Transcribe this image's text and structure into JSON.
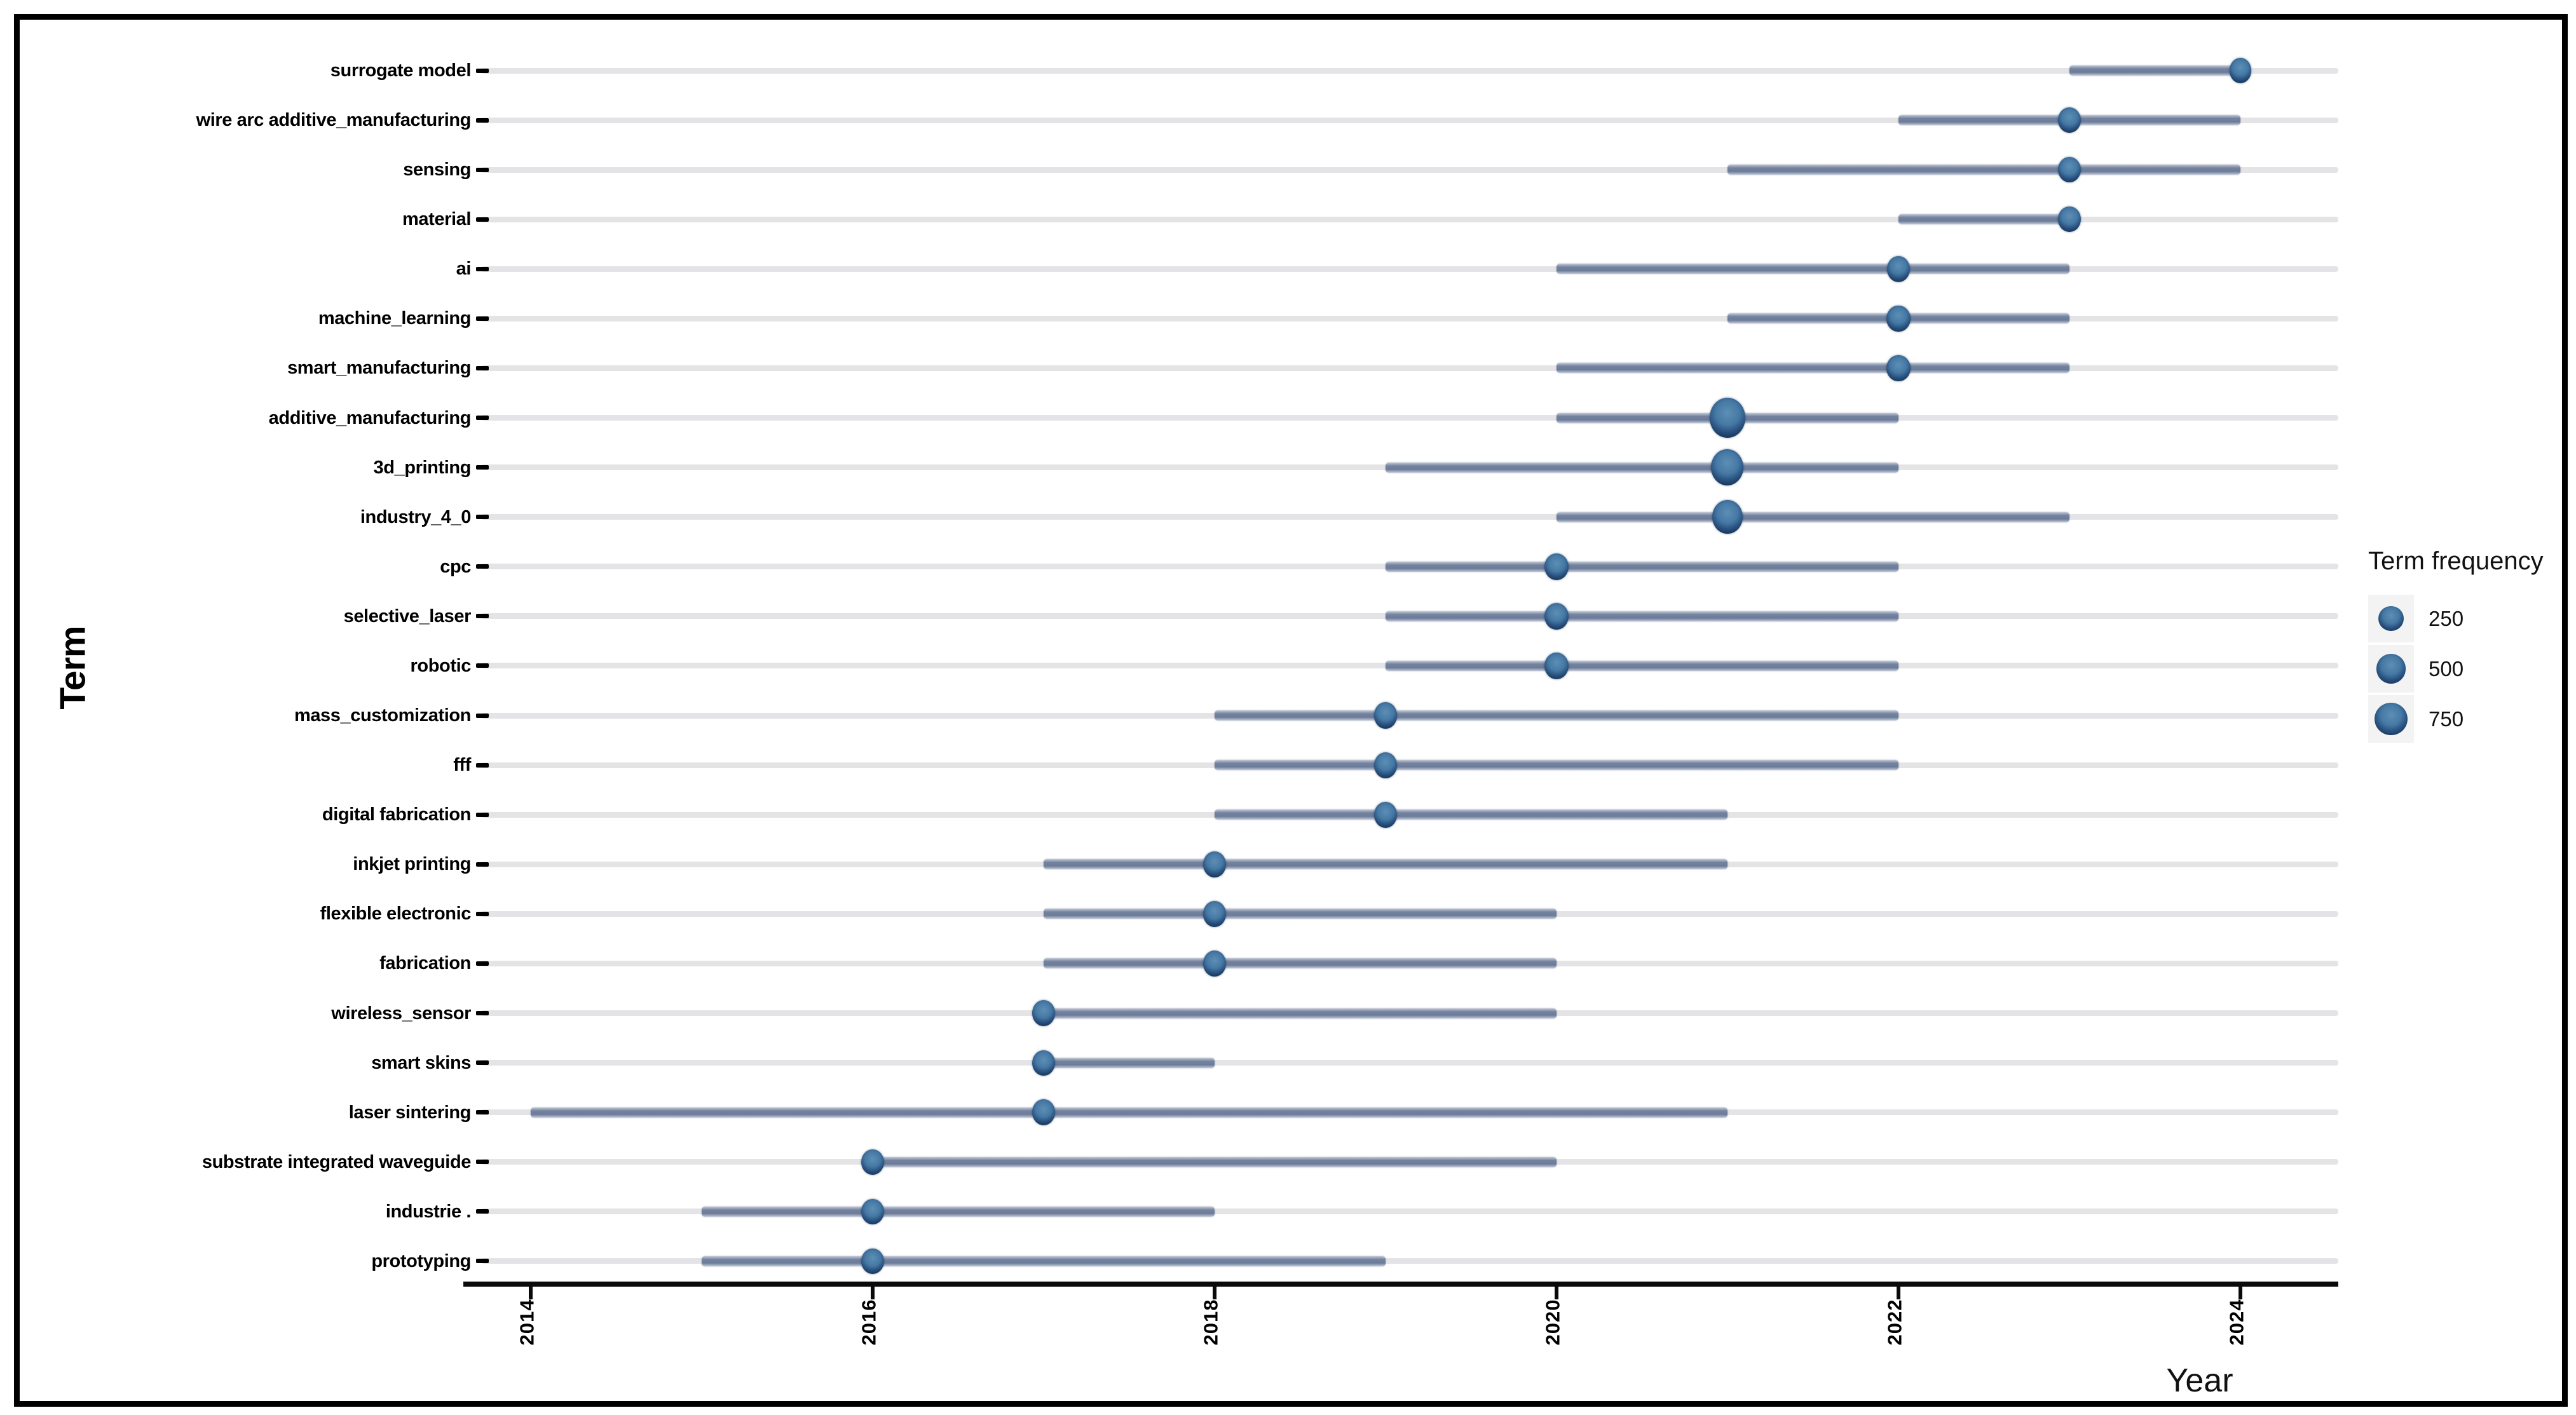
{
  "chart_data": {
    "type": "range-dot",
    "title": "",
    "xlabel": "Year",
    "ylabel": "Term",
    "x_ticks": [
      "2014",
      "2016",
      "2018",
      "2020",
      "2022",
      "2024"
    ],
    "x_range": [
      2013.7,
      2024.9
    ],
    "grid": "horizontal",
    "legend": {
      "title": "Term frequency",
      "position": "right",
      "sizes": [
        250,
        500,
        750
      ]
    },
    "series": [
      {
        "term": "surrogate model",
        "start": 2023,
        "end": 2024,
        "peak": 2024,
        "frequency": 120
      },
      {
        "term": "wire arc additive_manufacturing",
        "start": 2022,
        "end": 2024,
        "peak": 2023,
        "frequency": 140
      },
      {
        "term": "sensing",
        "start": 2021,
        "end": 2024,
        "peak": 2023,
        "frequency": 150
      },
      {
        "term": "material",
        "start": 2022,
        "end": 2023,
        "peak": 2023,
        "frequency": 130
      },
      {
        "term": "ai",
        "start": 2020,
        "end": 2023,
        "peak": 2022,
        "frequency": 160
      },
      {
        "term": "machine_learning",
        "start": 2021,
        "end": 2023,
        "peak": 2022,
        "frequency": 170
      },
      {
        "term": "smart_manufacturing",
        "start": 2020,
        "end": 2023,
        "peak": 2022,
        "frequency": 170
      },
      {
        "term": "additive_manufacturing",
        "start": 2020,
        "end": 2022,
        "peak": 2021,
        "frequency": 950
      },
      {
        "term": "3d_printing",
        "start": 2019,
        "end": 2022,
        "peak": 2021,
        "frequency": 700
      },
      {
        "term": "industry_4_0",
        "start": 2020,
        "end": 2023,
        "peak": 2021,
        "frequency": 520
      },
      {
        "term": "cpc",
        "start": 2019,
        "end": 2022,
        "peak": 2020,
        "frequency": 190
      },
      {
        "term": "selective_laser",
        "start": 2019,
        "end": 2022,
        "peak": 2020,
        "frequency": 190
      },
      {
        "term": "robotic",
        "start": 2019,
        "end": 2022,
        "peak": 2020,
        "frequency": 190
      },
      {
        "term": "mass_customization",
        "start": 2018,
        "end": 2022,
        "peak": 2019,
        "frequency": 160
      },
      {
        "term": "fff",
        "start": 2018,
        "end": 2022,
        "peak": 2019,
        "frequency": 160
      },
      {
        "term": "digital fabrication",
        "start": 2018,
        "end": 2021,
        "peak": 2019,
        "frequency": 150
      },
      {
        "term": "inkjet printing",
        "start": 2017,
        "end": 2021,
        "peak": 2018,
        "frequency": 160
      },
      {
        "term": "flexible electronic",
        "start": 2017,
        "end": 2020,
        "peak": 2018,
        "frequency": 150
      },
      {
        "term": "fabrication",
        "start": 2017,
        "end": 2020,
        "peak": 2018,
        "frequency": 150
      },
      {
        "term": "wireless_sensor",
        "start": 2017,
        "end": 2020,
        "peak": 2017,
        "frequency": 150
      },
      {
        "term": "smart skins",
        "start": 2017,
        "end": 2018,
        "peak": 2017,
        "frequency": 140
      },
      {
        "term": "laser sintering",
        "start": 2014,
        "end": 2021,
        "peak": 2017,
        "frequency": 150
      },
      {
        "term": "substrate integrated waveguide",
        "start": 2016,
        "end": 2020,
        "peak": 2016,
        "frequency": 140
      },
      {
        "term": "industrie .",
        "start": 2015,
        "end": 2018,
        "peak": 2016,
        "frequency": 150
      },
      {
        "term": "prototyping",
        "start": 2015,
        "end": 2019,
        "peak": 2016,
        "frequency": 150
      }
    ]
  }
}
